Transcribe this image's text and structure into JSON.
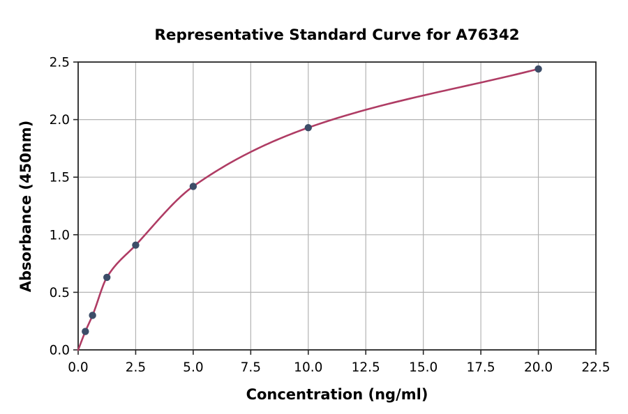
{
  "chart_data": {
    "type": "scatter",
    "title": "Representative Standard Curve for A76342",
    "xlabel": "Concentration (ng/ml)",
    "ylabel": "Absorbance (450nm)",
    "points": {
      "x": [
        0.313,
        0.625,
        1.25,
        2.5,
        5,
        10,
        20
      ],
      "y": [
        0.16,
        0.3,
        0.63,
        0.91,
        1.42,
        1.93,
        2.44
      ]
    },
    "fit_curve": {
      "style": "smooth-saturation-curve",
      "starts_at_origin": true,
      "ends_at_last_point": true
    },
    "xlim": [
      0,
      22.5
    ],
    "ylim": [
      0,
      2.5
    ],
    "xticks": [
      0,
      2.5,
      5,
      7.5,
      10,
      12.5,
      15,
      17.5,
      20,
      22.5
    ],
    "xtick_labels": [
      "0.0",
      "2.5",
      "5.0",
      "7.5",
      "10.0",
      "12.5",
      "15.0",
      "17.5",
      "20.0",
      "22.5"
    ],
    "yticks": [
      0,
      0.5,
      1,
      1.5,
      2,
      2.5
    ],
    "ytick_labels": [
      "0.0",
      "0.5",
      "1.0",
      "1.5",
      "2.0",
      "2.5"
    ],
    "grid": true,
    "legend": null,
    "colors": {
      "curve": "#af3c64",
      "points": "#3c4d68",
      "grid": "#b3b3b3",
      "spine": "#262626",
      "text": "#000000",
      "background": "#ffffff"
    }
  }
}
